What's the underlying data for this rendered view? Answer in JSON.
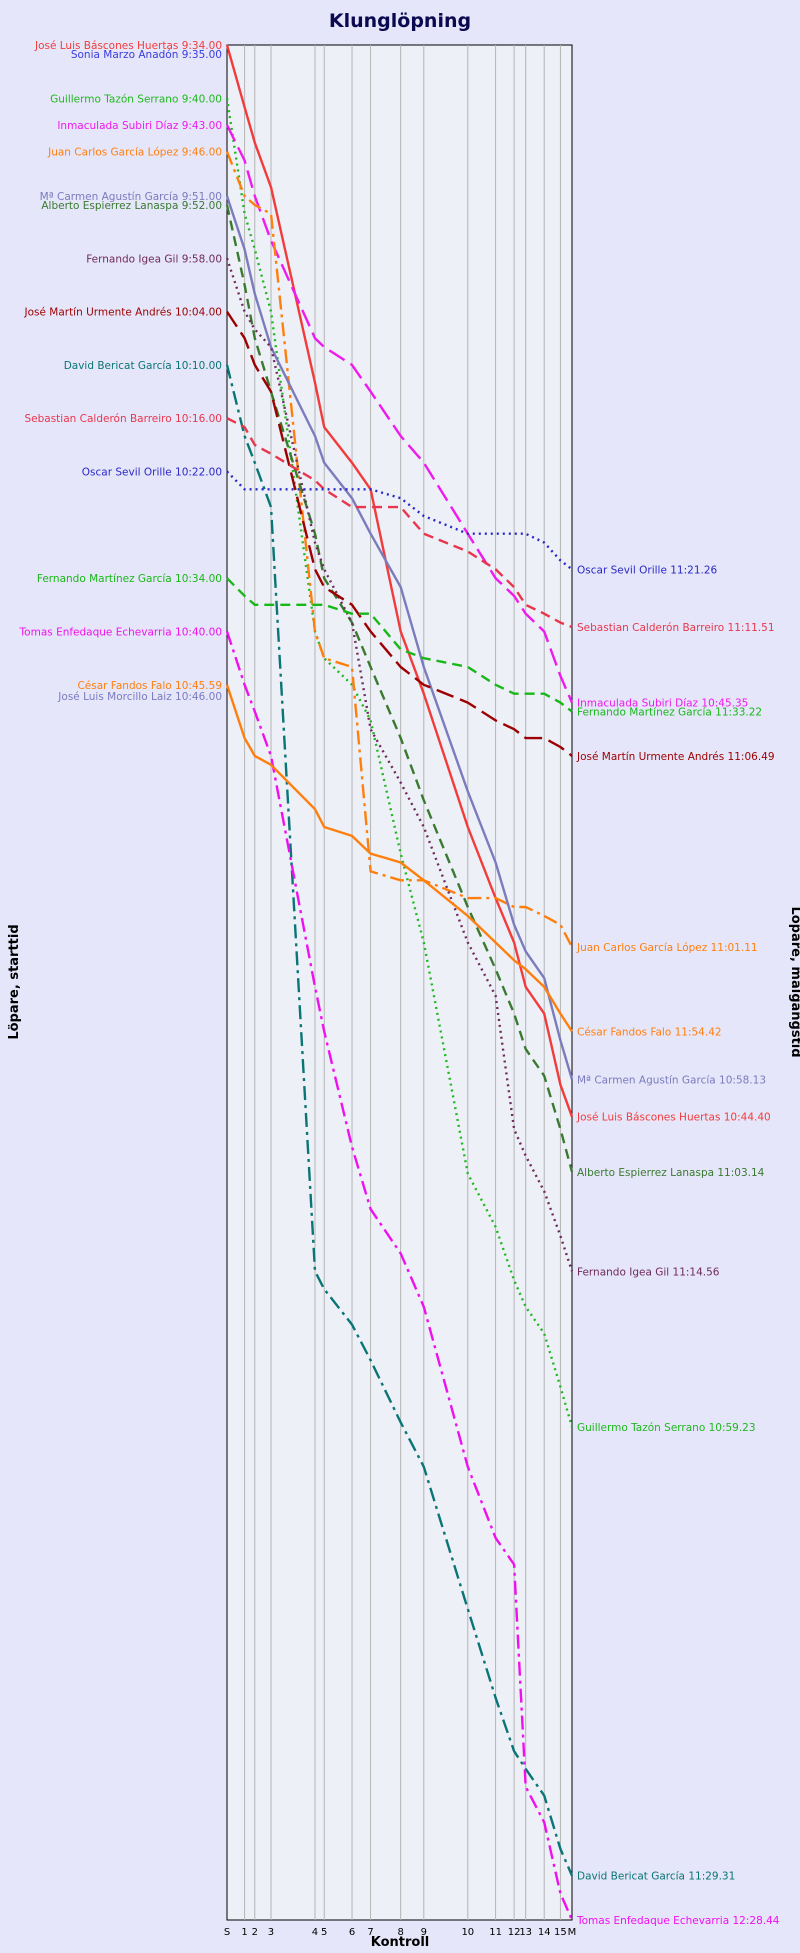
{
  "chart_data": {
    "type": "line",
    "title": "Klunglöpning",
    "xlabel": "Kontroll",
    "ylabel_left": "Löpare, starttid",
    "ylabel_right": "Löpare, målgångstid",
    "controls": [
      "S",
      "1",
      "2",
      "3",
      "4",
      "5",
      "6",
      "7",
      "8",
      "9",
      "10",
      "11",
      "12",
      "13",
      "14",
      "15",
      "M"
    ],
    "control_km": [
      0,
      0.38,
      0.6,
      0.95,
      1.9,
      2.1,
      2.7,
      3.1,
      3.75,
      4.25,
      5.2,
      5.8,
      6.2,
      6.45,
      6.85,
      7.2,
      7.45
    ],
    "grid": true,
    "series": [
      {
        "name": "José Luis Báscones Huertas",
        "color": "#f23c3c",
        "dash": "solid",
        "start_label": "José Luis Báscones Huertas 9:34.00",
        "finish_label": "José Luis Báscones Huertas 10:44.40",
        "start": 0,
        "times": [
          0,
          7,
          11,
          16,
          38,
          43,
          47,
          50,
          66,
          73,
          88,
          96,
          101,
          106,
          109,
          117,
          120.6
        ]
      },
      {
        "name": "Sonia Marzo Anadón",
        "color": "#3b3be0",
        "dash": "solid",
        "start_label": "Sonia Marzo Anadón 9:35.00",
        "finish_label": "",
        "start": 1,
        "times": []
      },
      {
        "name": "Guillermo Tazón Serrano",
        "color": "#1fb81f",
        "dash": "dot",
        "start_label": "Guillermo Tazón Serrano 9:40.00",
        "finish_label": "Guillermo Tazón Serrano 10:59.23",
        "start": 6,
        "times": [
          6,
          19,
          23,
          30,
          66,
          69,
          72,
          76,
          91,
          101,
          127,
          133,
          139,
          142,
          145,
          151,
          155.5
        ]
      },
      {
        "name": "Inmaculada Subiri Díaz",
        "color": "#ee1aee",
        "dash": "longdash",
        "start_label": "Inmaculada Subiri Díaz 9:43.00",
        "finish_label": "Inmaculada Subiri Díaz 10:45.35",
        "start": 9,
        "times": [
          9,
          13,
          17,
          22,
          33,
          34,
          36,
          39,
          44,
          47,
          55,
          60,
          62,
          64,
          66,
          71,
          74
        ]
      },
      {
        "name": "Juan Carlos García López",
        "color": "#ff7f0e",
        "dash": "dashdot",
        "start_label": "Juan Carlos García López 9:46.00",
        "finish_label": "Juan Carlos García López 11:01.11",
        "start": 12,
        "times": [
          12,
          17,
          18,
          19,
          66,
          69,
          70,
          93,
          94,
          94,
          96,
          96,
          97,
          97,
          98,
          99,
          101.5
        ]
      },
      {
        "name": "Mª Carmen Agustín García",
        "color": "#7b7bbd",
        "dash": "solid",
        "start_label": "Mª Carmen Agustín García 9:51.00",
        "finish_label": "Mª Carmen Agustín García 10:58.13",
        "start": 17,
        "times": [
          17,
          23,
          28,
          34,
          44,
          47,
          51,
          55,
          61,
          70,
          84,
          92,
          99,
          102,
          105,
          112,
          116.4
        ]
      },
      {
        "name": "Alberto Espierrez Lanaspa",
        "color": "#3a7a30",
        "dash": "dash",
        "start_label": "Alberto Espierrez Lanaspa 9:52.00",
        "finish_label": "Alberto Espierrez Lanaspa 11:03.14",
        "start": 18,
        "times": [
          18,
          27,
          33,
          39,
          55,
          60,
          65,
          70,
          78,
          85,
          97,
          104,
          109,
          113,
          116,
          122,
          126.8
        ]
      },
      {
        "name": "Fernando Igea Gil",
        "color": "#6e2b5b",
        "dash": "dot",
        "start_label": "Fernando Igea Gil 9:58.00",
        "finish_label": "Fernando Igea Gil 11:14.56",
        "start": 24,
        "times": [
          24,
          30,
          32,
          34,
          56,
          59,
          65,
          77,
          83,
          88,
          101,
          107,
          122,
          125,
          129,
          134,
          138
        ]
      },
      {
        "name": "José Martín Urmente Andrés",
        "color": "#9c0000",
        "dash": "longdash",
        "start_label": "José Martín Urmente Andrés 10:04.00",
        "finish_label": "José Martín Urmente Andrés 11:06.49",
        "start": 30,
        "times": [
          30,
          33,
          36,
          39,
          59,
          61,
          63,
          66,
          70,
          72,
          74,
          76,
          77,
          78,
          78,
          79,
          80
        ]
      },
      {
        "name": "David Bericat García",
        "color": "#0a7575",
        "dash": "dashdot",
        "start_label": "David Bericat García 10:10.00",
        "finish_label": "David Bericat García 11:29.31",
        "start": 36,
        "times": [
          36,
          44,
          47,
          52,
          138,
          140,
          144,
          148,
          155,
          160,
          176,
          186,
          192,
          194,
          197,
          203,
          206
        ]
      },
      {
        "name": "Sebastian Calderón Barreiro",
        "color": "#e8364d",
        "dash": "dash",
        "start_label": "Sebastian Calderón Barreiro 10:16.00",
        "finish_label": "Sebastian Calderón Barreiro 11:11.51",
        "start": 42,
        "times": [
          42,
          43,
          45,
          46,
          49,
          50,
          52,
          52,
          52,
          55,
          57,
          59,
          61,
          63,
          64,
          65,
          65.5
        ]
      },
      {
        "name": "Oscar Sevil Orille",
        "color": "#2929c7",
        "dash": "dot",
        "start_label": "Oscar Sevil Orille 10:22.00",
        "finish_label": "Oscar Sevil Orille 11:21.26",
        "start": 48,
        "times": [
          48,
          50,
          50,
          50,
          50,
          50,
          50,
          50,
          51,
          53,
          55,
          55,
          55,
          55,
          56,
          58,
          59
        ]
      },
      {
        "name": "Fernando Martínez García",
        "color": "#19b819",
        "dash": "dash",
        "start_label": "Fernando Martínez García 10:34.00",
        "finish_label": "Fernando Martínez García 11:33.22",
        "start": 60,
        "times": [
          60,
          62,
          63,
          63,
          63,
          63,
          64,
          64,
          68,
          69,
          70,
          72,
          73,
          73,
          73,
          74,
          75
        ]
      },
      {
        "name": "Tomas Enfedaque Echevarria",
        "color": "#ef10ef",
        "dash": "dashdot",
        "start_label": "Tomas Enfedaque Echevarria 10:40.00",
        "finish_label": "Tomas Enfedaque Echevarria 12:28.44",
        "start": 66,
        "times": [
          66,
          72,
          75,
          80,
          106,
          111,
          124,
          131,
          136,
          142,
          160,
          168,
          171,
          196,
          200,
          208,
          211
        ]
      },
      {
        "name": "César Fandos Falo",
        "color": "#ff7f0e",
        "dash": "solid",
        "start_label": "César Fandos Falo 10:45.59",
        "finish_label": "César Fandos Falo 11:54.42",
        "start": 72,
        "times": [
          72,
          78,
          80,
          81,
          86,
          88,
          89,
          91,
          92,
          94,
          98,
          101,
          103,
          104,
          106,
          109,
          111
        ]
      },
      {
        "name": "José Luis Morcillo Laiz",
        "color": "#7b7bbd",
        "dash": "solid",
        "start_label": "José Luis Morcillo Laiz 10:46.00",
        "finish_label": "",
        "start": 72,
        "times": []
      }
    ]
  }
}
